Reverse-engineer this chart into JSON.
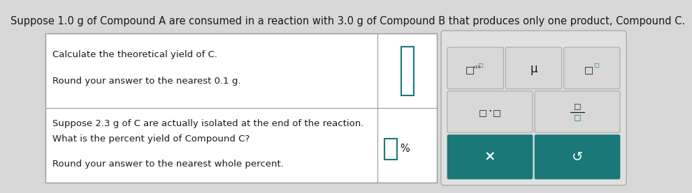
{
  "title": "Suppose 1.0 g of Compound A are consumed in a reaction with 3.0 g of Compound B that produces only one product, Compound C.",
  "page_bg": "#d8d8d8",
  "table_bg": "#ffffff",
  "table_border": "#999999",
  "row1_text_line1": "Calculate the theoretical yield of C.",
  "row1_text_line2": "Round your answer to the nearest 0.1 g.",
  "row2_text_line1": "Suppose 2.3 g of C are actually isolated at the end of the reaction.",
  "row2_text_line2": "What is the percent yield of Compound C?",
  "row2_text_line3": "Round your answer to the nearest whole percent.",
  "input_box_color": "#ffffff",
  "teal_color": "#1a7878",
  "teal_button_color": "#1a7878",
  "light_gray_button": "#d8d8d8",
  "panel_bg": "#e0e0e0",
  "panel_border": "#aaaaaa",
  "text_color": "#1a1a1a",
  "font_size_main": 9.5,
  "percent_symbol": "%"
}
